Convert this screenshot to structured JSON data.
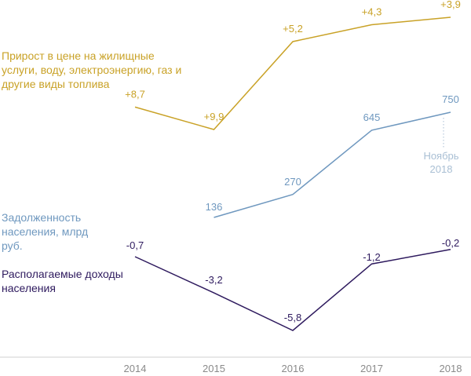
{
  "chart_data": {
    "type": "line",
    "x": [
      2014,
      2015,
      2016,
      2017,
      2018
    ],
    "xticks": [
      "2014",
      "2015",
      "2016",
      "2017",
      "2018"
    ],
    "series": [
      {
        "name": "Прирост в цене на жилищные услуги, воду, электроэнергию, газ и другие виды топлива",
        "x": [
          2014,
          2015,
          2016,
          2017,
          2018
        ],
        "values": [
          8.7,
          9.9,
          5.2,
          4.3,
          3.9
        ],
        "labels": [
          "+8,7",
          "+9,9",
          "+5,2",
          "+4,3",
          "+3,9"
        ],
        "color": "#c9a227"
      },
      {
        "name": "Задолженность населения, млрд руб.",
        "x": [
          2015,
          2016,
          2017,
          2018
        ],
        "values": [
          136,
          270,
          645,
          750
        ],
        "labels": [
          "136",
          "270",
          "645",
          "750"
        ],
        "color": "#6f98bf",
        "note": "Ноябрь 2018"
      },
      {
        "name": "Располагаемые доходы населения",
        "x": [
          2014,
          2015,
          2016,
          2017,
          2018
        ],
        "values": [
          -0.7,
          -3.2,
          -5.8,
          -1.2,
          -0.2
        ],
        "labels": [
          "-0,7",
          "-3,2",
          "-5,8",
          "-1,2",
          "-0,2"
        ],
        "color": "#2e1a5e"
      }
    ],
    "legend": "inline-left",
    "grid": false
  },
  "colors": {
    "note": "#a9bfd4",
    "axis": "#d0d0d0"
  }
}
